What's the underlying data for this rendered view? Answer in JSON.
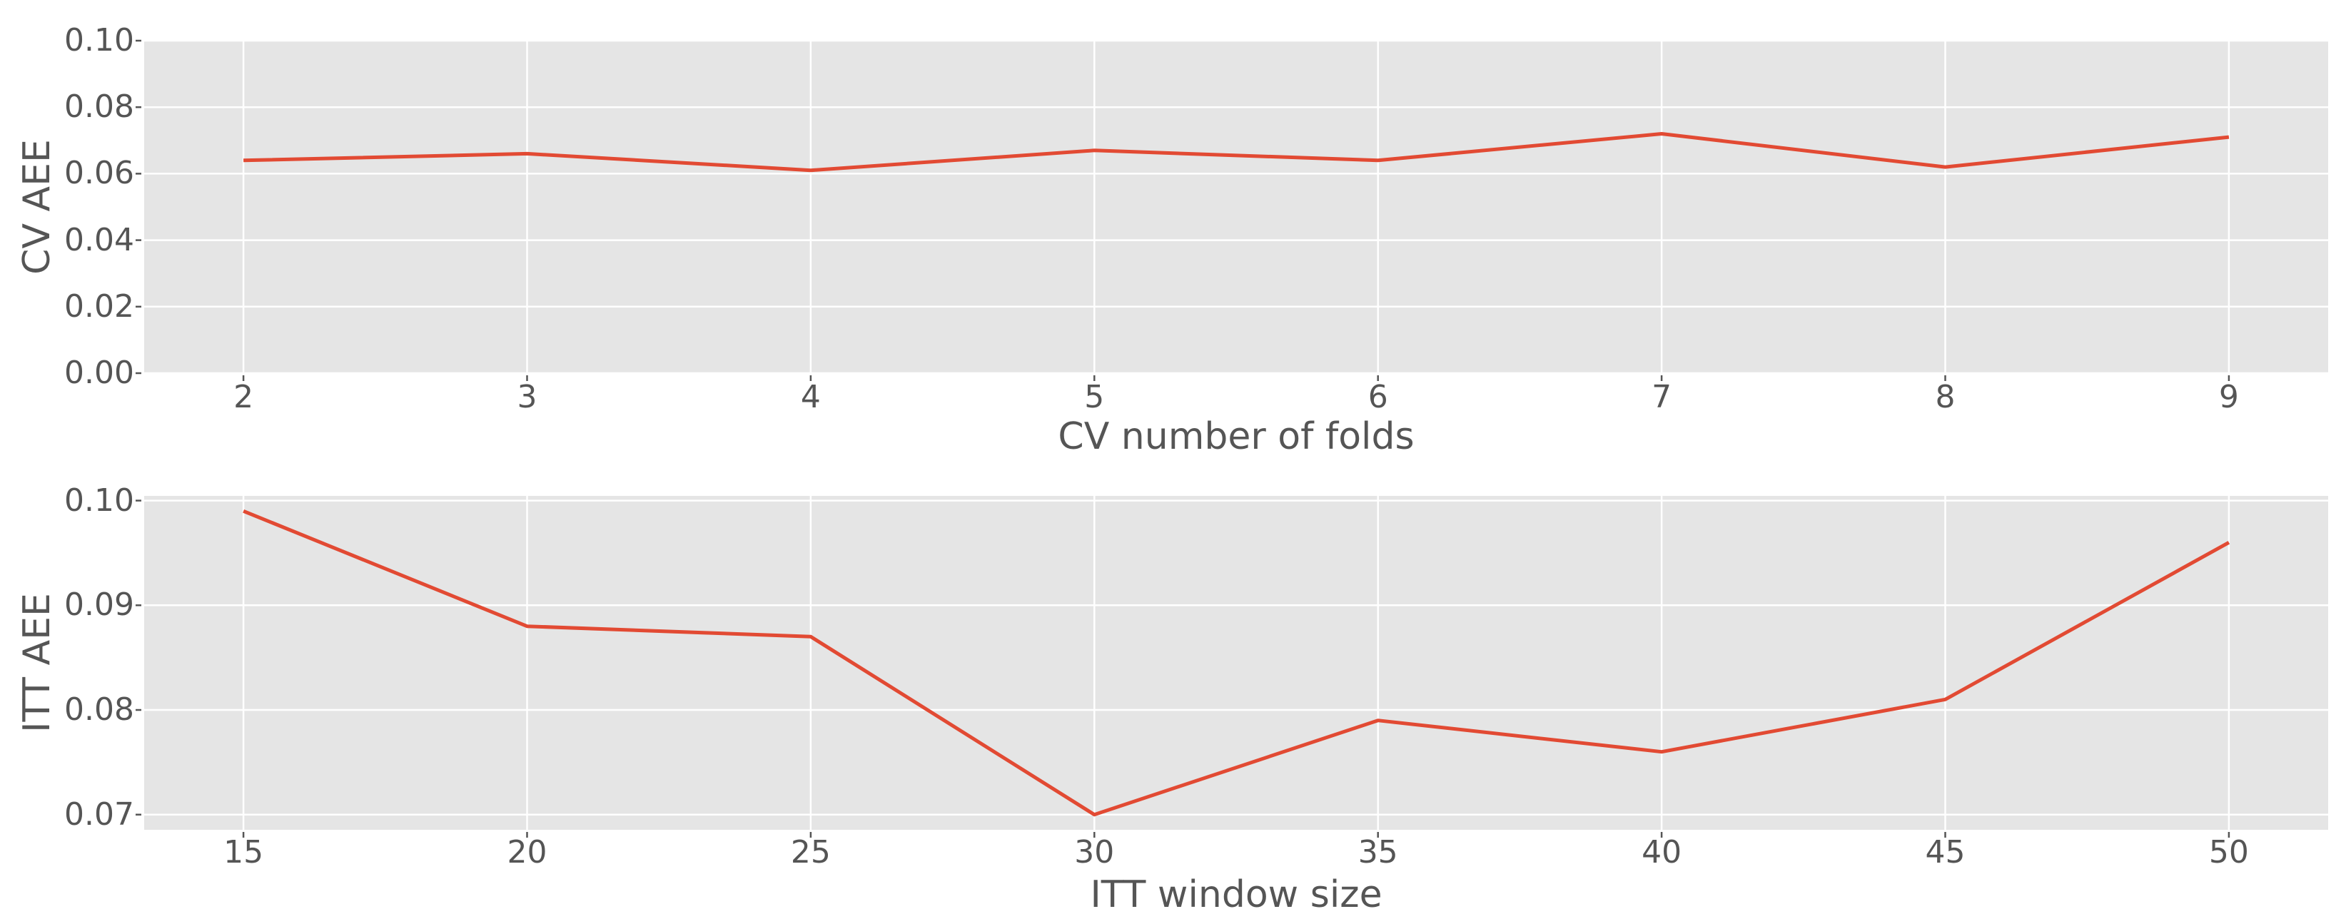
{
  "colors": {
    "line": "#E24A33",
    "plot_background": "#E5E5E5",
    "gridline": "#FFFFFF",
    "tick_mark": "#555555",
    "text": "#555555",
    "figure_background": "#FFFFFF"
  },
  "chart_data": [
    {
      "type": "line",
      "title": "",
      "xlabel": "CV number of folds",
      "ylabel": "CV AEE",
      "x": [
        2,
        3,
        4,
        5,
        6,
        7,
        8,
        9
      ],
      "y": [
        0.064,
        0.066,
        0.061,
        0.067,
        0.064,
        0.072,
        0.062,
        0.071
      ],
      "xticks": [
        2,
        3,
        4,
        5,
        6,
        7,
        8,
        9
      ],
      "xtick_labels": [
        "2",
        "3",
        "4",
        "5",
        "6",
        "7",
        "8",
        "9"
      ],
      "yticks": [
        0.0,
        0.02,
        0.04,
        0.06,
        0.08,
        0.1
      ],
      "ytick_labels": [
        "0.00",
        "0.02",
        "0.04",
        "0.06",
        "0.08",
        "0.10"
      ],
      "xlim": [
        1.65,
        9.35
      ],
      "ylim": [
        0.0,
        0.1
      ],
      "grid": true,
      "legend": false
    },
    {
      "type": "line",
      "title": "",
      "xlabel": "ITT window size",
      "ylabel": "ITT AEE",
      "x": [
        15,
        20,
        25,
        30,
        35,
        40,
        45,
        50
      ],
      "y": [
        0.099,
        0.088,
        0.087,
        0.07,
        0.079,
        0.076,
        0.081,
        0.096
      ],
      "xticks": [
        15,
        20,
        25,
        30,
        35,
        40,
        45,
        50
      ],
      "xtick_labels": [
        "15",
        "20",
        "25",
        "30",
        "35",
        "40",
        "45",
        "50"
      ],
      "yticks": [
        0.07,
        0.08,
        0.09,
        0.1
      ],
      "ytick_labels": [
        "0.07",
        "0.08",
        "0.09",
        "0.10"
      ],
      "xlim": [
        13.25,
        51.75
      ],
      "ylim": [
        0.06855,
        0.10045
      ],
      "grid": true,
      "legend": false
    }
  ]
}
